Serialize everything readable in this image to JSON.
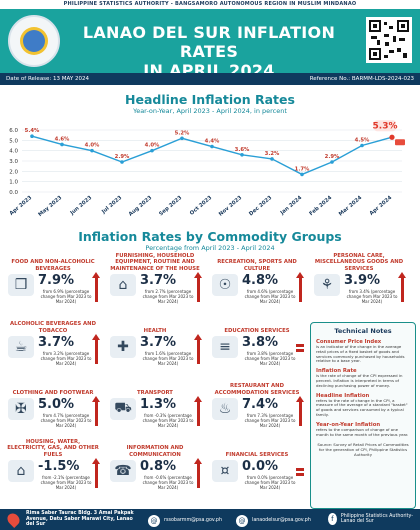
{
  "header": {
    "agency": "PHILIPPINE STATISTICS AUTHORITY - BANGSAMORO AUTONOMOUS REGION IN MUSLIM MINDANAO",
    "title_line1": "LANAO DEL SUR INFLATION RATES",
    "title_line2": "IN APRIL 2024",
    "release": "Date of Release: 13 MAY 2024",
    "reference": "Reference No.: BARMM-LDS-2024-023"
  },
  "headline": {
    "title": "Headline Inflation Rates",
    "subtitle": "Year-on-Year, April 2023 - April 2024, in percent"
  },
  "chart_data": {
    "type": "line",
    "title": "Headline Inflation Rates",
    "subtitle": "Year-on-Year, April 2023 - April 2024, in percent",
    "categories": [
      "Apr 2023",
      "May 2023",
      "Jun 2023",
      "Jul 2023",
      "Aug 2023",
      "Sep 2023",
      "Oct 2023",
      "Nov 2023",
      "Dec 2023",
      "Jan 2024",
      "Feb 2024",
      "Mar 2024",
      "Apr 2024"
    ],
    "values": [
      5.4,
      4.6,
      4.0,
      2.9,
      4.0,
      5.2,
      4.4,
      3.6,
      3.2,
      1.7,
      2.9,
      4.5,
      5.3
    ],
    "value_labels": [
      "5.4%",
      "4.6%",
      "4.0%",
      "2.9%",
      "4.0%",
      "5.2%",
      "4.4%",
      "3.6%",
      "3.2%",
      "1.7%",
      "2.9%",
      "4.5%",
      "5.3%"
    ],
    "yticks": [
      "0.0",
      "1.0",
      "2.0",
      "3.0",
      "4.0",
      "5.0",
      "6.0"
    ],
    "ylim": [
      0,
      6
    ],
    "grid": true,
    "line_color": "#2a9fd6",
    "label_color": "#c0392b",
    "highlight_color": "#e0392b"
  },
  "commodity": {
    "title": "Inflation Rates by Commodity Groups",
    "subtitle": "Percentage from April 2023 - April 2024",
    "items": [
      {
        "name": "FOOD AND NON-ALCOHOLIC BEVERAGES",
        "value": "7.9%",
        "desc": "from 6.9% (percentage change from Mar 2023 to Mar 2024)",
        "direction": "up",
        "icon": "basket-icon",
        "glyph": "❒"
      },
      {
        "name": "FURNISHING, HOUSEHOLD EQUIPMENT, ROUTINE AND MAINTENANCE OF THE HOUSE",
        "value": "3.7%",
        "desc": "from 2.7% (percentage change from Mar 2023 to Mar 2024)",
        "direction": "up",
        "icon": "sofa-icon",
        "glyph": "⌂"
      },
      {
        "name": "RECREATION, SPORTS AND CULTURE",
        "value": "4.8%",
        "desc": "from 4.6% (percentage change from Mar 2023 to Mar 2024)",
        "direction": "up",
        "icon": "gamepad-icon",
        "glyph": "☉"
      },
      {
        "name": "PERSONAL CARE, MISCELLANEOUS GOODS AND SERVICES",
        "value": "3.9%",
        "desc": "from 3.4% (percentage change from Mar 2023 to Mar 2024)",
        "direction": "up",
        "icon": "personal-care-icon",
        "glyph": "⚘"
      },
      {
        "name": "ALCOHOLIC BEVERAGES AND TOBACCO",
        "value": "3.7%",
        "desc": "from 3.2% (percentage change from Mar 2023 to Mar 2024)",
        "direction": "up",
        "icon": "bottle-icon",
        "glyph": "☕"
      },
      {
        "name": "HEALTH",
        "value": "3.7%",
        "desc": "from 1.6% (percentage change from Mar 2023 to Mar 2024)",
        "direction": "up",
        "icon": "health-icon",
        "glyph": "✚"
      },
      {
        "name": "EDUCATION SERVICES",
        "value": "3.8%",
        "desc": "from 3.8% (percentage change from Mar 2023 to Mar 2024)",
        "direction": "flat",
        "icon": "books-icon",
        "glyph": "≡"
      },
      {
        "name": "CLOTHING AND FOOTWEAR",
        "value": "5.0%",
        "desc": "from 4.7% (percentage change from Mar 2023 to Mar 2024)",
        "direction": "up",
        "icon": "shirt-icon",
        "glyph": "✠"
      },
      {
        "name": "TRANSPORT",
        "value": "1.3%",
        "desc": "from -0.3% (percentage change from Mar 2023 to Mar 2024)",
        "direction": "up",
        "icon": "vehicle-icon",
        "glyph": "⛟"
      },
      {
        "name": "RESTAURANT AND ACCOMMODATION SERVICES",
        "value": "7.4%",
        "desc": "from 7.3% (percentage change from Mar 2023 to Mar 2024)",
        "direction": "up",
        "icon": "restaurant-icon",
        "glyph": "♨"
      },
      {
        "name": "HOUSING, WATER, ELECTRICITY, GAS, AND OTHER FUELS",
        "value": "-1.5%",
        "desc": "from -2.1% (percentage change from Mar 2023 to Mar 2024)",
        "direction": "up",
        "icon": "house-icon",
        "glyph": "⌂"
      },
      {
        "name": "INFORMATION AND COMMUNICATION",
        "value": "0.8%",
        "desc": "from -0.6% (percentage change from Mar 2023 to Mar 2024)",
        "direction": "up",
        "icon": "phone-icon",
        "glyph": "☎"
      },
      {
        "name": "FINANCIAL SERVICES",
        "value": "0.0%",
        "desc": "from 0.0% (percentage change from Mar 2023 to Mar 2024)",
        "direction": "flat",
        "icon": "money-icon",
        "glyph": "¤"
      }
    ]
  },
  "notes": {
    "title": "Technical Notes",
    "cpi_h": "Consumer Price Index",
    "cpi_p": "is an indicator of the change in the average retail prices of a fixed basket of goods and services commonly purchased by households relative to a base year.",
    "infl_h": "Inflation Rate",
    "infl_p": "is the rate of change of the CPI expressed in percent. Inflation is interpreted in terms of declining purchasing power of money.",
    "head_h": "Headline Inflation",
    "head_p": "refers to the rate of change in the CPI, a measure of the average of a standard \"basket\" of goods and services consumed by a typical family.",
    "yoy_h": "Year-on-Year Inflation",
    "yoy_p": "refers to the comparison of change of one month to the same month of the previous year.",
    "source": "Source: Survey of Retail Prices of Commodities for the generation of CPI, Philippine Statistics Authority"
  },
  "footer": {
    "address": "Rima Saber Taurac Bldg. 3 Amai Pakpak Avenue, Datu Saber Marawi City, Lanao del Sur",
    "email1": "rssobarmm@psa.gov.ph",
    "email2": "lanaodelsur@psa.gov.ph",
    "fb": "Philippine Statistics Authority-Lanao del Sur"
  }
}
